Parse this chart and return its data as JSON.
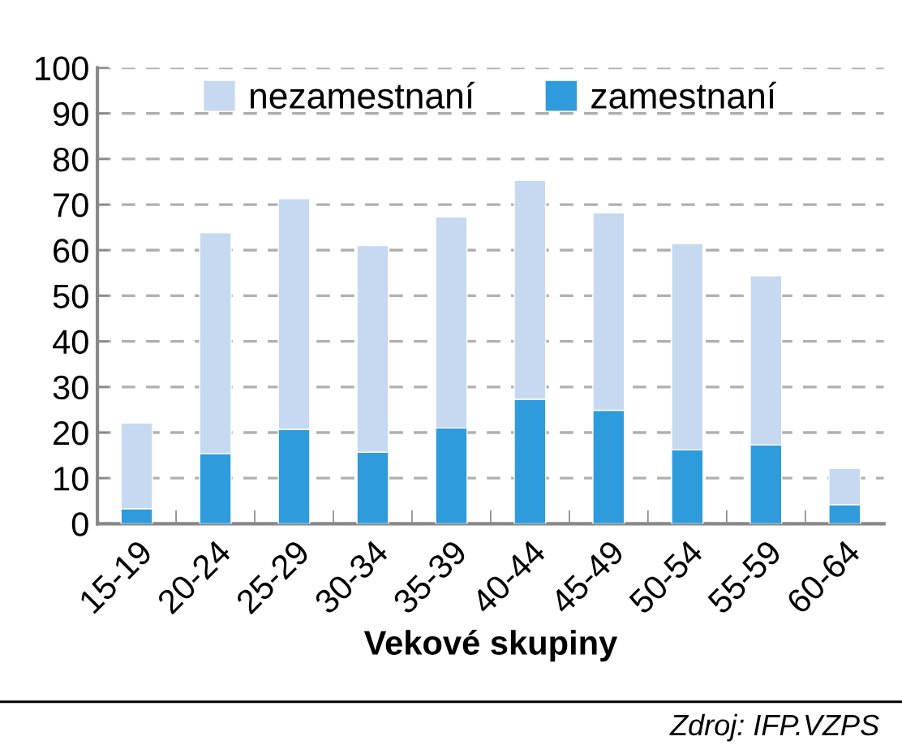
{
  "chart_data": {
    "type": "bar",
    "stacked": true,
    "xlabel": "Vekové skupiny",
    "categories": [
      "15-19",
      "20-24",
      "25-29",
      "30-34",
      "35-39",
      "40-44",
      "45-49",
      "50-54",
      "55-59",
      "60-64"
    ],
    "series": [
      {
        "name": "zamestnaní",
        "color": "#2e9bdc",
        "values": [
          3.3,
          15.4,
          20.7,
          15.7,
          21.0,
          27.3,
          24.9,
          16.2,
          17.3,
          4.2
        ]
      },
      {
        "name": "nezamestnaní",
        "color": "#c6d9f1",
        "values": [
          18.8,
          48.4,
          50.6,
          45.3,
          46.3,
          48.0,
          43.3,
          45.2,
          37.1,
          7.9
        ]
      }
    ],
    "ylim": [
      0,
      100
    ],
    "yticks": [
      0,
      10,
      20,
      30,
      40,
      50,
      60,
      70,
      80,
      90,
      100
    ],
    "grid": "y",
    "legend": "top",
    "annotations": [
      "Zdroj: IFP.VZPS"
    ]
  }
}
